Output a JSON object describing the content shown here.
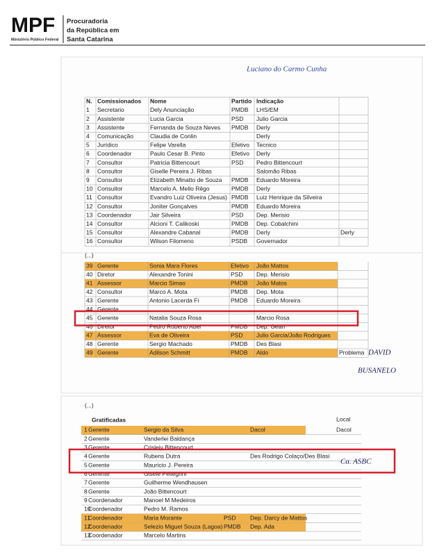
{
  "header": {
    "logo": "MPF",
    "org": "Ministério Público Federal",
    "office": [
      "Procuradoria",
      "da República em",
      "Santa Catarina"
    ]
  },
  "sections": [
    {
      "note": "Luciano do Carmo Cunha",
      "columns": {
        "n": "N.",
        "role": "Comissionados",
        "name": "Nome",
        "party": "Partido",
        "ind": "Indicação"
      },
      "rows": [
        {
          "n": 1,
          "role": "Secretario",
          "name": "Dely Anunciação",
          "party": "PMDB",
          "ind": "LHS/EM"
        },
        {
          "n": 2,
          "role": "Assistente",
          "name": "Lucia Garcia",
          "party": "PSD",
          "ind": "Julio Garcia"
        },
        {
          "n": 3,
          "role": "Assistente",
          "name": "Fernanda de Souza Neves",
          "party": "PMDB",
          "ind": "Derly"
        },
        {
          "n": 4,
          "role": "Comunicação",
          "name": "Claudia de Conlin",
          "ind": "Derly"
        },
        {
          "n": 5,
          "role": "Jurídico",
          "name": "Felipe Varella",
          "party": "Efetivo",
          "ind": "Tecnico"
        },
        {
          "n": 6,
          "role": "Coordenador",
          "name": "Paulo Cesar B. Pinto",
          "party": "Efetivo",
          "ind": "Derly"
        },
        {
          "n": 7,
          "role": "Consultor",
          "name": "Patricia Bittencourt",
          "party": "PSD",
          "ind": "Pedro Bittencourt"
        },
        {
          "n": 8,
          "role": "Consultor",
          "name": "Giselle Pereira J. Ribas",
          "ind": "Salomão Ribas"
        },
        {
          "n": 9,
          "role": "Consultor",
          "name": "Elizabeth Minatto de Souza",
          "party": "PMDB",
          "ind": "Eduardo Moreira"
        },
        {
          "n": 10,
          "role": "Consultor",
          "name": "Marcelo A. Mello Rêgo",
          "party": "PMDB",
          "ind": "Derly"
        },
        {
          "n": 11,
          "role": "Consultor",
          "name": "Evandro Luiz Oliveira (Jesus)",
          "party": "PMDB",
          "ind": "Luiz Henrique da Silveira"
        },
        {
          "n": 12,
          "role": "Consultor",
          "name": "Joniter Gonçalves",
          "party": "PMDB",
          "ind": "Eduardo Moreira"
        },
        {
          "n": 13,
          "role": "Coordenador",
          "name": "Jair Silveira",
          "party": "PSD",
          "ind": "Dep. Merisio"
        },
        {
          "n": 14,
          "role": "Consultor",
          "name": "Alcioni T. Calikoski",
          "party": "PMDB",
          "ind": "Dep. Cobalchini"
        },
        {
          "n": 15,
          "role": "Consultor",
          "name": "Alexandre Cabanal",
          "party": "PMDB",
          "ind": "Derly",
          "extra": "Derly"
        },
        {
          "n": 16,
          "role": "Consultor",
          "name": "Wilson Filomeno",
          "party": "PSDB",
          "ind": "Governador"
        }
      ],
      "orange_rows": [],
      "after": "(...)"
    },
    {
      "rows": [
        {
          "n": 39,
          "role": "Gerente",
          "name": "Sonia Mara Flores",
          "party": "Efetivo",
          "ind": "João Mattos"
        },
        {
          "n": 40,
          "role": "Diretor",
          "name": "Alexandre Tonini",
          "party": "PSD",
          "ind": "Dep. Merisio"
        },
        {
          "n": 41,
          "role": "Assessor",
          "name": "Marcio Simao",
          "party": "PMDB",
          "ind": "João Matos"
        },
        {
          "n": 42,
          "role": "Consultor",
          "name": "Marco A. Mota",
          "party": "PMDB",
          "ind": "Dep. Mota"
        },
        {
          "n": 43,
          "role": "Gerente",
          "name": "Antonio Lacerda Fi",
          "party": "PMDB",
          "ind": "Eduardo Moreira"
        },
        {
          "n": 44,
          "role": "Gerente"
        },
        {
          "n": 45,
          "role": "Gerente",
          "name": "Natalia Souza Rosa",
          "ind": "Marcio Rosa"
        },
        {
          "n": 46,
          "role": "Diretor",
          "name": "Pedro Roberto Abel",
          "party": "PMDB",
          "ind": "Dep. Gean"
        },
        {
          "n": 47,
          "role": "Assessor",
          "name": "Eva de Oliveira",
          "party": "PSD",
          "ind": "Julio Garcia/João Rodrigues"
        },
        {
          "n": 48,
          "role": "Gerente",
          "name": "Sergio Machado",
          "party": "PMDB",
          "ind": "Des Blasi"
        },
        {
          "n": 49,
          "role": "Gerente",
          "name": "Adilson Schmitt",
          "party": "PMDB",
          "ind": "Aldo",
          "extra": "Problema"
        }
      ],
      "orange_rows": [
        0,
        2,
        8,
        10
      ],
      "boxed_rows": [
        6
      ],
      "notes": [
        "DAVID",
        "BUSANELO"
      ]
    },
    {
      "before": "(...)",
      "title": "Gratificadas",
      "local": "Local",
      "rows": [
        {
          "n": 1,
          "role": "Gerente",
          "name": "Sergio da Silva",
          "ind": "Dacol",
          "extra": "Dacol"
        },
        {
          "n": 2,
          "role": "Gerente",
          "name": "Vanderlei Baldança"
        },
        {
          "n": 3,
          "role": "Gerente",
          "name": "Crisleiy Bittencourt"
        },
        {
          "n": 4,
          "role": "Gerente",
          "name": "Rubens Dutra",
          "ind": "Des Rodrigo Colaço/Des Blasi"
        },
        {
          "n": 5,
          "role": "Gerente",
          "name": "Mauricio J. Pereira"
        },
        {
          "n": 6,
          "role": "Gerente",
          "name": "Gisele Pellegrini"
        },
        {
          "n": 7,
          "role": "Gerente",
          "name": "Guilherme Wendhausen"
        },
        {
          "n": 8,
          "role": "Gerente",
          "name": "João Bittencourt"
        },
        {
          "n": 9,
          "role": "Coordenador",
          "name": "Manoel M Medeiros"
        },
        {
          "n": 10,
          "role": "Coordenador",
          "name": "Pedro M. Ramos"
        },
        {
          "n": 11,
          "role": "Coordenador",
          "name": "Maria Morante",
          "party": "PSD",
          "ind": "Dep. Darcy de Mattos"
        },
        {
          "n": 12,
          "role": "Coordenador",
          "name": "Selezio Miguel Souza (Lagoa)",
          "party": "PMDB",
          "ind": "Dep. Ada"
        },
        {
          "n": 13,
          "role": "Coordenador",
          "name": "Marcelo Martins"
        }
      ],
      "orange_rows": [
        0,
        10,
        11
      ],
      "boxed_rows": [
        3,
        4
      ],
      "notes": [
        "Ca. ASBC"
      ]
    }
  ]
}
